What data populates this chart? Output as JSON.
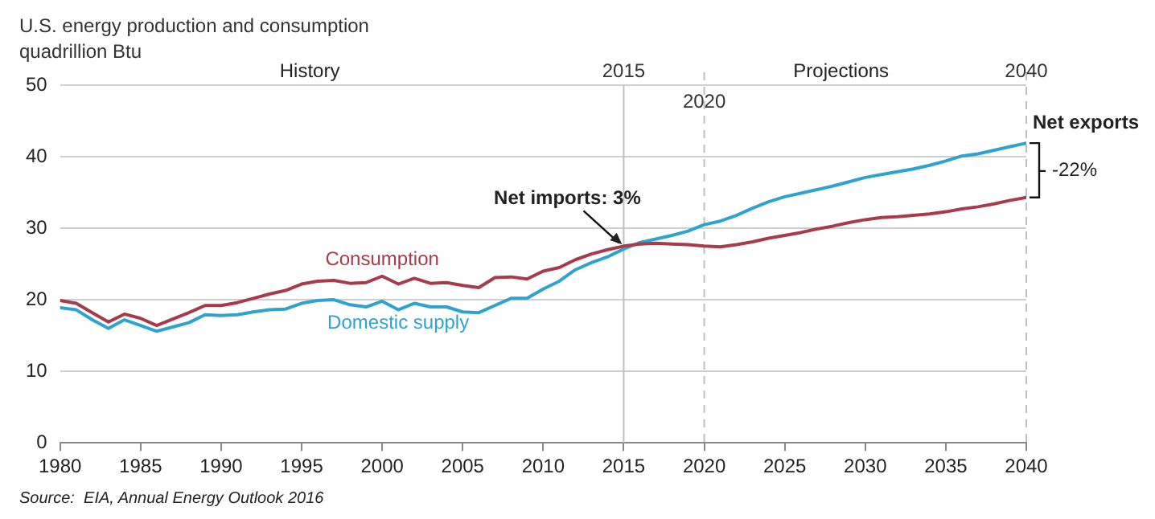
{
  "chart_data": {
    "type": "line",
    "title": "U.S. energy production and consumption",
    "subtitle": "quadrillion Btu",
    "x": [
      1980,
      1981,
      1982,
      1983,
      1984,
      1985,
      1986,
      1987,
      1988,
      1989,
      1990,
      1991,
      1992,
      1993,
      1994,
      1995,
      1996,
      1997,
      1998,
      1999,
      2000,
      2001,
      2002,
      2003,
      2004,
      2005,
      2006,
      2007,
      2008,
      2009,
      2010,
      2011,
      2012,
      2013,
      2014,
      2015,
      2016,
      2017,
      2018,
      2019,
      2020,
      2021,
      2022,
      2023,
      2024,
      2025,
      2026,
      2027,
      2028,
      2029,
      2030,
      2031,
      2032,
      2033,
      2034,
      2035,
      2036,
      2037,
      2038,
      2039,
      2040
    ],
    "series": [
      {
        "name": "Consumption",
        "color": "#a83a4a",
        "values": [
          19.9,
          19.5,
          18.2,
          16.9,
          18.0,
          17.4,
          16.4,
          17.3,
          18.2,
          19.2,
          19.2,
          19.6,
          20.2,
          20.8,
          21.3,
          22.2,
          22.6,
          22.7,
          22.3,
          22.4,
          23.3,
          22.2,
          23.0,
          22.3,
          22.4,
          22.0,
          21.7,
          23.1,
          23.2,
          22.9,
          24.0,
          24.5,
          25.6,
          26.4,
          27.0,
          27.5,
          27.8,
          27.9,
          27.8,
          27.7,
          27.5,
          27.4,
          27.7,
          28.1,
          28.6,
          29.0,
          29.4,
          29.9,
          30.3,
          30.8,
          31.2,
          31.5,
          31.6,
          31.8,
          32.0,
          32.3,
          32.7,
          33.0,
          33.4,
          33.9,
          34.3
        ]
      },
      {
        "name": "Domestic supply",
        "color": "#2ea3cf",
        "values": [
          18.9,
          18.6,
          17.2,
          16.0,
          17.2,
          16.4,
          15.6,
          16.2,
          16.8,
          17.9,
          17.8,
          17.9,
          18.3,
          18.6,
          18.7,
          19.5,
          19.9,
          20.0,
          19.3,
          19.0,
          19.8,
          18.6,
          19.5,
          19.0,
          19.0,
          18.3,
          18.2,
          19.2,
          20.2,
          20.2,
          21.5,
          22.6,
          24.2,
          25.2,
          26.0,
          27.1,
          28.0,
          28.5,
          29.0,
          29.6,
          30.5,
          31.0,
          31.8,
          32.8,
          33.7,
          34.4,
          34.9,
          35.4,
          35.9,
          36.5,
          37.1,
          37.5,
          37.9,
          38.3,
          38.8,
          39.4,
          40.1,
          40.4,
          40.9,
          41.4,
          41.9
        ]
      }
    ],
    "xlim": [
      1980,
      2040
    ],
    "xticks": [
      1980,
      1985,
      1990,
      1995,
      2000,
      2005,
      2010,
      2015,
      2020,
      2025,
      2030,
      2035,
      2040
    ],
    "ylim": [
      0,
      50
    ],
    "yticks": [
      0,
      10,
      20,
      30,
      40,
      50
    ],
    "grid": "y",
    "legend": false,
    "marker": "none",
    "line_style": "solid",
    "ref_lines": [
      {
        "axis": "x",
        "value": 2015,
        "label": "2015",
        "color": "#bfbfbf",
        "line_style": "solid"
      },
      {
        "axis": "x",
        "value": 2020,
        "label": "2020",
        "color": "#bfbfbf",
        "line_style": "dashed"
      },
      {
        "axis": "x",
        "value": 2040,
        "label": "2040",
        "color": "#bfbfbf",
        "line_style": "dashed"
      }
    ],
    "annotations": [
      "History",
      "Projections",
      {
        "text": "Net imports: 3%",
        "x": 2015,
        "y": 27.5
      },
      "Net exports",
      {
        "text": "-22%",
        "x": 2040,
        "y": 38
      },
      "Source:  EIA, Annual Energy Outlook 2016"
    ]
  }
}
